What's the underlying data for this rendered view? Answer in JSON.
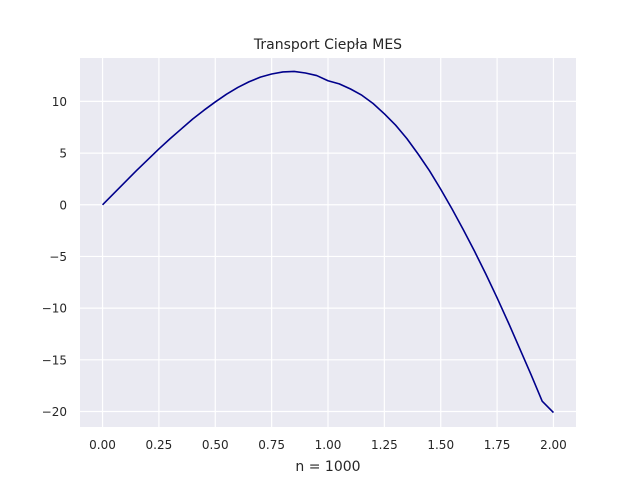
{
  "chart_data": {
    "type": "line",
    "title": "Transport Ciepła MES",
    "xlabel": "n = 1000",
    "ylabel": "",
    "xlim": [
      -0.1,
      2.1
    ],
    "ylim": [
      -21.5,
      14.2
    ],
    "grid": true,
    "style": {
      "background": "#eaeaf2",
      "grid_color": "#ffffff",
      "line_color": "#00008b"
    },
    "x_ticks": [
      {
        "value": 0.0,
        "label": "0.00"
      },
      {
        "value": 0.25,
        "label": "0.25"
      },
      {
        "value": 0.5,
        "label": "0.50"
      },
      {
        "value": 0.75,
        "label": "0.75"
      },
      {
        "value": 1.0,
        "label": "1.00"
      },
      {
        "value": 1.25,
        "label": "1.25"
      },
      {
        "value": 1.5,
        "label": "1.50"
      },
      {
        "value": 1.75,
        "label": "1.75"
      },
      {
        "value": 2.0,
        "label": "2.00"
      }
    ],
    "y_ticks": [
      {
        "value": 10,
        "label": "10"
      },
      {
        "value": 5,
        "label": "5"
      },
      {
        "value": 0,
        "label": "0"
      },
      {
        "value": -5,
        "label": "−5"
      },
      {
        "value": -10,
        "label": "−10"
      },
      {
        "value": -15,
        "label": "−15"
      },
      {
        "value": -20,
        "label": "−20"
      }
    ],
    "series": [
      {
        "color": "#00008b",
        "points": [
          [
            0.0,
            0.0
          ],
          [
            0.05,
            1.1
          ],
          [
            0.1,
            2.2
          ],
          [
            0.15,
            3.3
          ],
          [
            0.2,
            4.35
          ],
          [
            0.25,
            5.4
          ],
          [
            0.3,
            6.4
          ],
          [
            0.35,
            7.35
          ],
          [
            0.4,
            8.3
          ],
          [
            0.45,
            9.15
          ],
          [
            0.5,
            9.95
          ],
          [
            0.55,
            10.7
          ],
          [
            0.6,
            11.35
          ],
          [
            0.65,
            11.9
          ],
          [
            0.7,
            12.35
          ],
          [
            0.75,
            12.65
          ],
          [
            0.8,
            12.85
          ],
          [
            0.85,
            12.9
          ],
          [
            0.9,
            12.75
          ],
          [
            0.95,
            12.5
          ],
          [
            1.0,
            12.0
          ],
          [
            1.05,
            11.7
          ],
          [
            1.1,
            11.2
          ],
          [
            1.15,
            10.6
          ],
          [
            1.2,
            9.8
          ],
          [
            1.25,
            8.8
          ],
          [
            1.3,
            7.7
          ],
          [
            1.35,
            6.4
          ],
          [
            1.4,
            4.9
          ],
          [
            1.45,
            3.3
          ],
          [
            1.5,
            1.5
          ],
          [
            1.55,
            -0.4
          ],
          [
            1.6,
            -2.4
          ],
          [
            1.65,
            -4.5
          ],
          [
            1.7,
            -6.7
          ],
          [
            1.75,
            -9.0
          ],
          [
            1.8,
            -11.4
          ],
          [
            1.85,
            -13.9
          ],
          [
            1.9,
            -16.4
          ],
          [
            1.95,
            -19.0
          ],
          [
            2.0,
            -20.1
          ]
        ]
      }
    ]
  }
}
